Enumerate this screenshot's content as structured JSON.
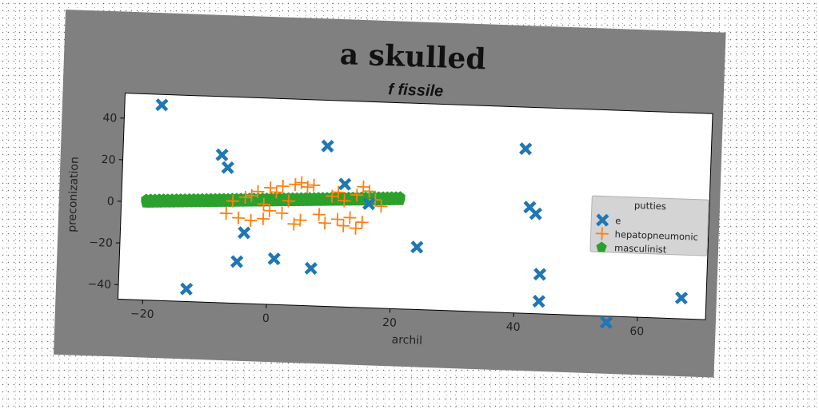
{
  "chart_data": {
    "type": "scatter",
    "title": "a skulled",
    "subtitle": "f fissile",
    "xlabel": "archil",
    "ylabel": "preconization",
    "xlim": [
      -24,
      71
    ],
    "ylim": [
      -47,
      52
    ],
    "xticks": [
      -20,
      0,
      20,
      40,
      60
    ],
    "yticks": [
      -40,
      -20,
      0,
      20,
      40
    ],
    "grid": false,
    "legend": {
      "title": "putties",
      "placement": "right"
    },
    "colors": {
      "frame": "#808080",
      "plot_bg": "#ffffff",
      "legend_bg": "#d4d4d4"
    },
    "series": [
      {
        "name": "e",
        "marker": "x-filled",
        "color": "#1f77b4",
        "points": [
          [
            -18,
            47
          ],
          [
            -8,
            24
          ],
          [
            -7,
            18
          ],
          [
            9,
            30
          ],
          [
            12,
            12
          ],
          [
            16,
            3
          ],
          [
            41,
            32
          ],
          [
            42,
            4
          ],
          [
            43,
            1
          ],
          [
            -4,
            -13
          ],
          [
            -5,
            -27
          ],
          [
            1,
            -25
          ],
          [
            7,
            -29
          ],
          [
            24,
            -17
          ],
          [
            -13,
            -41
          ],
          [
            44,
            -28
          ],
          [
            44,
            -41
          ],
          [
            55,
            -50
          ],
          [
            67,
            -37
          ]
        ]
      },
      {
        "name": "hepatopneumonic",
        "marker": "plus",
        "color": "#ff7f0e",
        "points": [
          [
            -7,
            -4
          ],
          [
            -5,
            -6
          ],
          [
            -3,
            -7
          ],
          [
            -1,
            -6
          ],
          [
            0,
            -2
          ],
          [
            2,
            -3
          ],
          [
            4,
            -8
          ],
          [
            5,
            -6
          ],
          [
            8,
            -3
          ],
          [
            9,
            -7
          ],
          [
            11,
            -5
          ],
          [
            12,
            -8
          ],
          [
            13,
            -4
          ],
          [
            14,
            -9
          ],
          [
            15,
            -6
          ],
          [
            -2,
            7
          ],
          [
            0,
            9
          ],
          [
            1,
            7
          ],
          [
            2,
            10
          ],
          [
            4,
            11
          ],
          [
            5,
            12
          ],
          [
            6,
            10
          ],
          [
            7,
            11
          ],
          [
            -6,
            2
          ],
          [
            -4,
            4
          ],
          [
            -3,
            5
          ],
          [
            3,
            3
          ],
          [
            10,
            6
          ],
          [
            11,
            8
          ],
          [
            12,
            4
          ],
          [
            14,
            7
          ],
          [
            15,
            11
          ],
          [
            16,
            9
          ],
          [
            17,
            5
          ],
          [
            -1,
            1
          ],
          [
            18,
            2
          ]
        ]
      },
      {
        "name": "masculinist",
        "marker": "pentagon",
        "color": "#2ca02c",
        "line": {
          "x_from": -20,
          "x_to": 21,
          "y_from": 0.5,
          "y_to": 6,
          "count": 60,
          "spread": 2
        }
      }
    ]
  }
}
